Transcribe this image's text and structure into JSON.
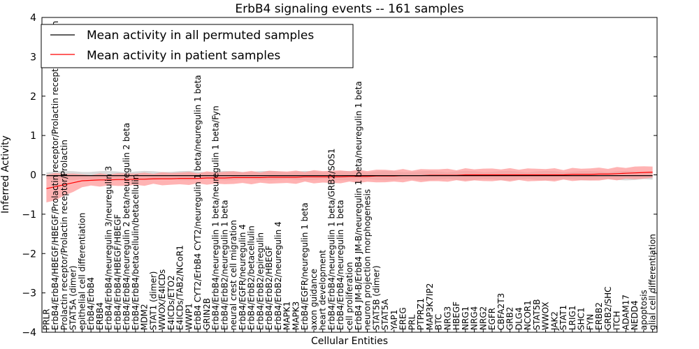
{
  "chart_data": {
    "type": "line",
    "title": "ErbB4 signaling events -- 161 samples",
    "xlabel": "Cellular Entities",
    "ylabel": "Inferred Activity",
    "ylim": [
      -4,
      4
    ],
    "yticks": [
      "4",
      "3",
      "2",
      "1",
      "0",
      "−1",
      "−2",
      "−3",
      "−4"
    ],
    "legend_position": "top-left",
    "colors": {
      "permuted": "#000000",
      "patient": "#ff0000",
      "patient_band": "#ff9a9a",
      "permuted_band": "#c8c8c8"
    },
    "categories": [
      "PRLR",
      "ErbB4/ErbB4/HBEGF/HBEGF/Prolactin receptor/Prolactin receptor/Prolactin",
      "Prolactin receptor/Prolactin receptor/Prolactin",
      "STAT5A (dimer)",
      "epithelial cell differentiation",
      "ErbB4/ErbB4",
      "ERBB4",
      "ErbB4/ErbB4/neuregulin 3/neuregulin 3",
      "ErbB4/ErbB4/HBEGF/HBEGF",
      "ErbB4/ErbB4/neuregulin 2 beta/neuregulin 2 beta",
      "ErbB4/ErbB4/betacellulin/betacellulin",
      "MDM2",
      "STAT1 (dimer)",
      "WWOX/E4ICDs",
      "E4ICDs/ETO2",
      "E4ICDs/TAB2/NCoR1",
      "WWP1",
      "ErbB4 CYT2/ErbB4 CYT2/neuregulin 1 beta/neuregulin 1 beta",
      "GRIN2B",
      "ErbB4/ErbB4/neuregulin 1 beta/neuregulin 1 beta/Fyn",
      "ErbB4/ErbB2/neuregulin 1 beta",
      "neural crest cell migration",
      "ErbB4/EGFR/neuregulin 4",
      "ErbB4/ErbB2/betacellulin",
      "ErbB4/ErbB2/epiregulin",
      "ErbB4/ErbB2/HBEGF",
      "ErbB4/ErbB2/neuregulin 4",
      "MAPK1",
      "MAPK3",
      "ErbB4/EGFR/neuregulin 1 beta",
      "axon guidance",
      "heart development",
      "ErbB4/ErbB4/neuregulin 1 beta/GRB2/SOS1",
      "ErbB4/ErbB4/neuregulin 1 beta",
      "cell proliferation",
      "ErbB4 JM-B/ErbB4 JM-B/neuregulin 1 beta/neuregulin 1 beta",
      "neuron projection morphogenesis",
      "STAT5B (dimer)",
      "STAT5A",
      "YAP1",
      "EREG",
      "PRL",
      "PTPRZ1",
      "MAP3K7IP2",
      "BTC",
      "NRG3",
      "HBEGF",
      "NRG1",
      "NRG4",
      "NRG2",
      "EGFR",
      "CBFA2T3",
      "GRB2",
      "DLG4",
      "NCOR1",
      "STAT5B",
      "WWOX",
      "JAK2",
      "STAT1",
      "LRIG1",
      "SHC1",
      "FYN",
      "ERBB2",
      "GRB2/SHC",
      "ITCH",
      "ADAM17",
      "NEDD4",
      "apoptosis",
      "glial cell differentiation"
    ],
    "series": [
      {
        "name": "Mean activity in all permuted samples",
        "values": [
          -0.02,
          -0.02,
          -0.02,
          -0.02,
          -0.02,
          -0.02,
          -0.02,
          -0.02,
          -0.02,
          -0.02,
          -0.02,
          -0.02,
          -0.02,
          -0.02,
          -0.02,
          -0.02,
          -0.02,
          -0.02,
          -0.02,
          -0.02,
          -0.02,
          -0.02,
          -0.02,
          -0.02,
          -0.02,
          -0.02,
          -0.02,
          -0.02,
          -0.02,
          -0.02,
          -0.02,
          -0.02,
          -0.02,
          -0.02,
          -0.02,
          -0.02,
          -0.02,
          -0.02,
          -0.02,
          -0.02,
          -0.02,
          -0.02,
          -0.02,
          -0.02,
          -0.02,
          -0.02,
          -0.02,
          -0.02,
          -0.02,
          -0.02,
          -0.02,
          -0.02,
          -0.02,
          -0.02,
          -0.02,
          -0.02,
          -0.02,
          -0.02,
          -0.02,
          -0.02,
          -0.02,
          -0.02,
          -0.02,
          -0.02,
          -0.02,
          -0.02,
          -0.02,
          -0.02,
          -0.02
        ]
      },
      {
        "name": "Mean activity in patient samples",
        "values": [
          -0.35,
          -0.3,
          -0.25,
          -0.2,
          -0.15,
          -0.14,
          -0.13,
          -0.13,
          -0.12,
          -0.12,
          -0.11,
          -0.11,
          -0.1,
          -0.1,
          -0.1,
          -0.09,
          -0.09,
          -0.09,
          -0.08,
          -0.08,
          -0.08,
          -0.07,
          -0.07,
          -0.07,
          -0.07,
          -0.06,
          -0.06,
          -0.06,
          -0.06,
          -0.05,
          -0.05,
          -0.05,
          -0.05,
          -0.05,
          -0.04,
          -0.04,
          -0.04,
          -0.03,
          -0.03,
          -0.03,
          -0.02,
          -0.02,
          -0.02,
          -0.01,
          -0.01,
          -0.01,
          -0.01,
          0.0,
          0.0,
          0.0,
          0.0,
          0.0,
          0.0,
          0.0,
          0.0,
          0.0,
          0.0,
          0.0,
          0.0,
          0.01,
          0.01,
          0.01,
          0.02,
          0.02,
          0.03,
          0.04,
          0.05,
          0.06,
          0.07
        ]
      }
    ]
  }
}
